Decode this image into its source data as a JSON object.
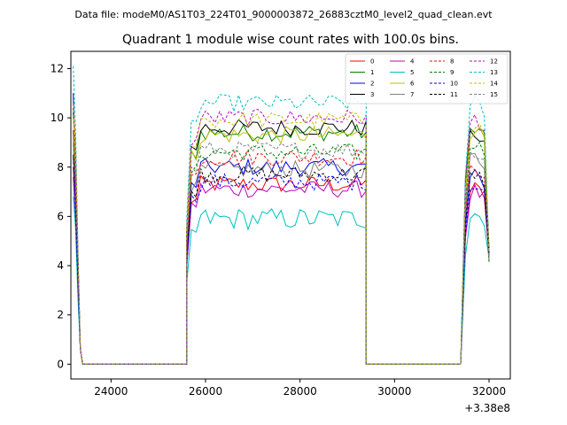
{
  "header": {
    "data_file_label": "Data file: modeM0/AS1T03_224T01_9000003872_26883cztM0_level2_quad_clean.evt"
  },
  "chart_data": {
    "type": "line",
    "title": "Quadrant 1 module wise count rates with 100.0s bins.",
    "xlabel": "",
    "ylabel": "",
    "x_offset_label": "+3.38e8",
    "xlim": [
      23150,
      32450
    ],
    "ylim": [
      -0.6,
      12.7
    ],
    "x_ticks": [
      24000,
      26000,
      28000,
      30000,
      32000
    ],
    "x_tick_labels": [
      "24000",
      "26000",
      "28000",
      "30000",
      "32000"
    ],
    "y_ticks": [
      0,
      2,
      4,
      6,
      8,
      10,
      12
    ],
    "y_tick_labels": [
      "0",
      "2",
      "4",
      "6",
      "8",
      "10",
      "12"
    ],
    "legend_position": "top-right",
    "segments": [
      [
        23200,
        24000
      ],
      [
        25600,
        29400
      ],
      [
        31400,
        32000
      ]
    ],
    "series": [
      {
        "name": "0",
        "color": "#ff0000",
        "dashed": false,
        "level": 7.3,
        "late": 7.0,
        "start": 8.0
      },
      {
        "name": "1",
        "color": "#008000",
        "dashed": false,
        "level": 9.4,
        "late": 9.5,
        "start": 10.2
      },
      {
        "name": "2",
        "color": "#0000ff",
        "dashed": false,
        "level": 8.0,
        "late": 7.5,
        "start": 11.0
      },
      {
        "name": "3",
        "color": "#000000",
        "dashed": false,
        "level": 9.6,
        "late": 9.2,
        "start": 10.4
      },
      {
        "name": "4",
        "color": "#bf00bf",
        "dashed": false,
        "level": 7.1,
        "late": 6.9,
        "start": 7.6
      },
      {
        "name": "5",
        "color": "#00bfbf",
        "dashed": false,
        "level": 5.9,
        "late": 6.0,
        "start": 6.8
      },
      {
        "name": "6",
        "color": "#bfbf00",
        "dashed": false,
        "level": 9.3,
        "late": 9.4,
        "start": 10.0
      },
      {
        "name": "7",
        "color": "#808080",
        "dashed": false,
        "level": 7.9,
        "late": 8.3,
        "start": 9.0
      },
      {
        "name": "8",
        "color": "#ff0000",
        "dashed": true,
        "level": 8.4,
        "late": 7.9,
        "start": 9.5
      },
      {
        "name": "9",
        "color": "#008000",
        "dashed": true,
        "level": 8.6,
        "late": 8.8,
        "start": 9.4
      },
      {
        "name": "10",
        "color": "#0000ff",
        "dashed": true,
        "level": 7.4,
        "late": 7.2,
        "start": 8.4
      },
      {
        "name": "11",
        "color": "#000000",
        "dashed": true,
        "level": 7.7,
        "late": 7.6,
        "start": 8.5
      },
      {
        "name": "12",
        "color": "#bf00bf",
        "dashed": true,
        "level": 10.0,
        "late": 9.8,
        "start": 10.6
      },
      {
        "name": "13",
        "color": "#00bfbf",
        "dashed": true,
        "level": 10.6,
        "late": 10.4,
        "start": 12.1
      },
      {
        "name": "14",
        "color": "#bfbf00",
        "dashed": true,
        "level": 9.9,
        "late": 9.6,
        "start": 10.5
      },
      {
        "name": "15",
        "color": "#808080",
        "dashed": true,
        "level": 8.7,
        "late": 8.5,
        "start": 9.2
      }
    ]
  }
}
